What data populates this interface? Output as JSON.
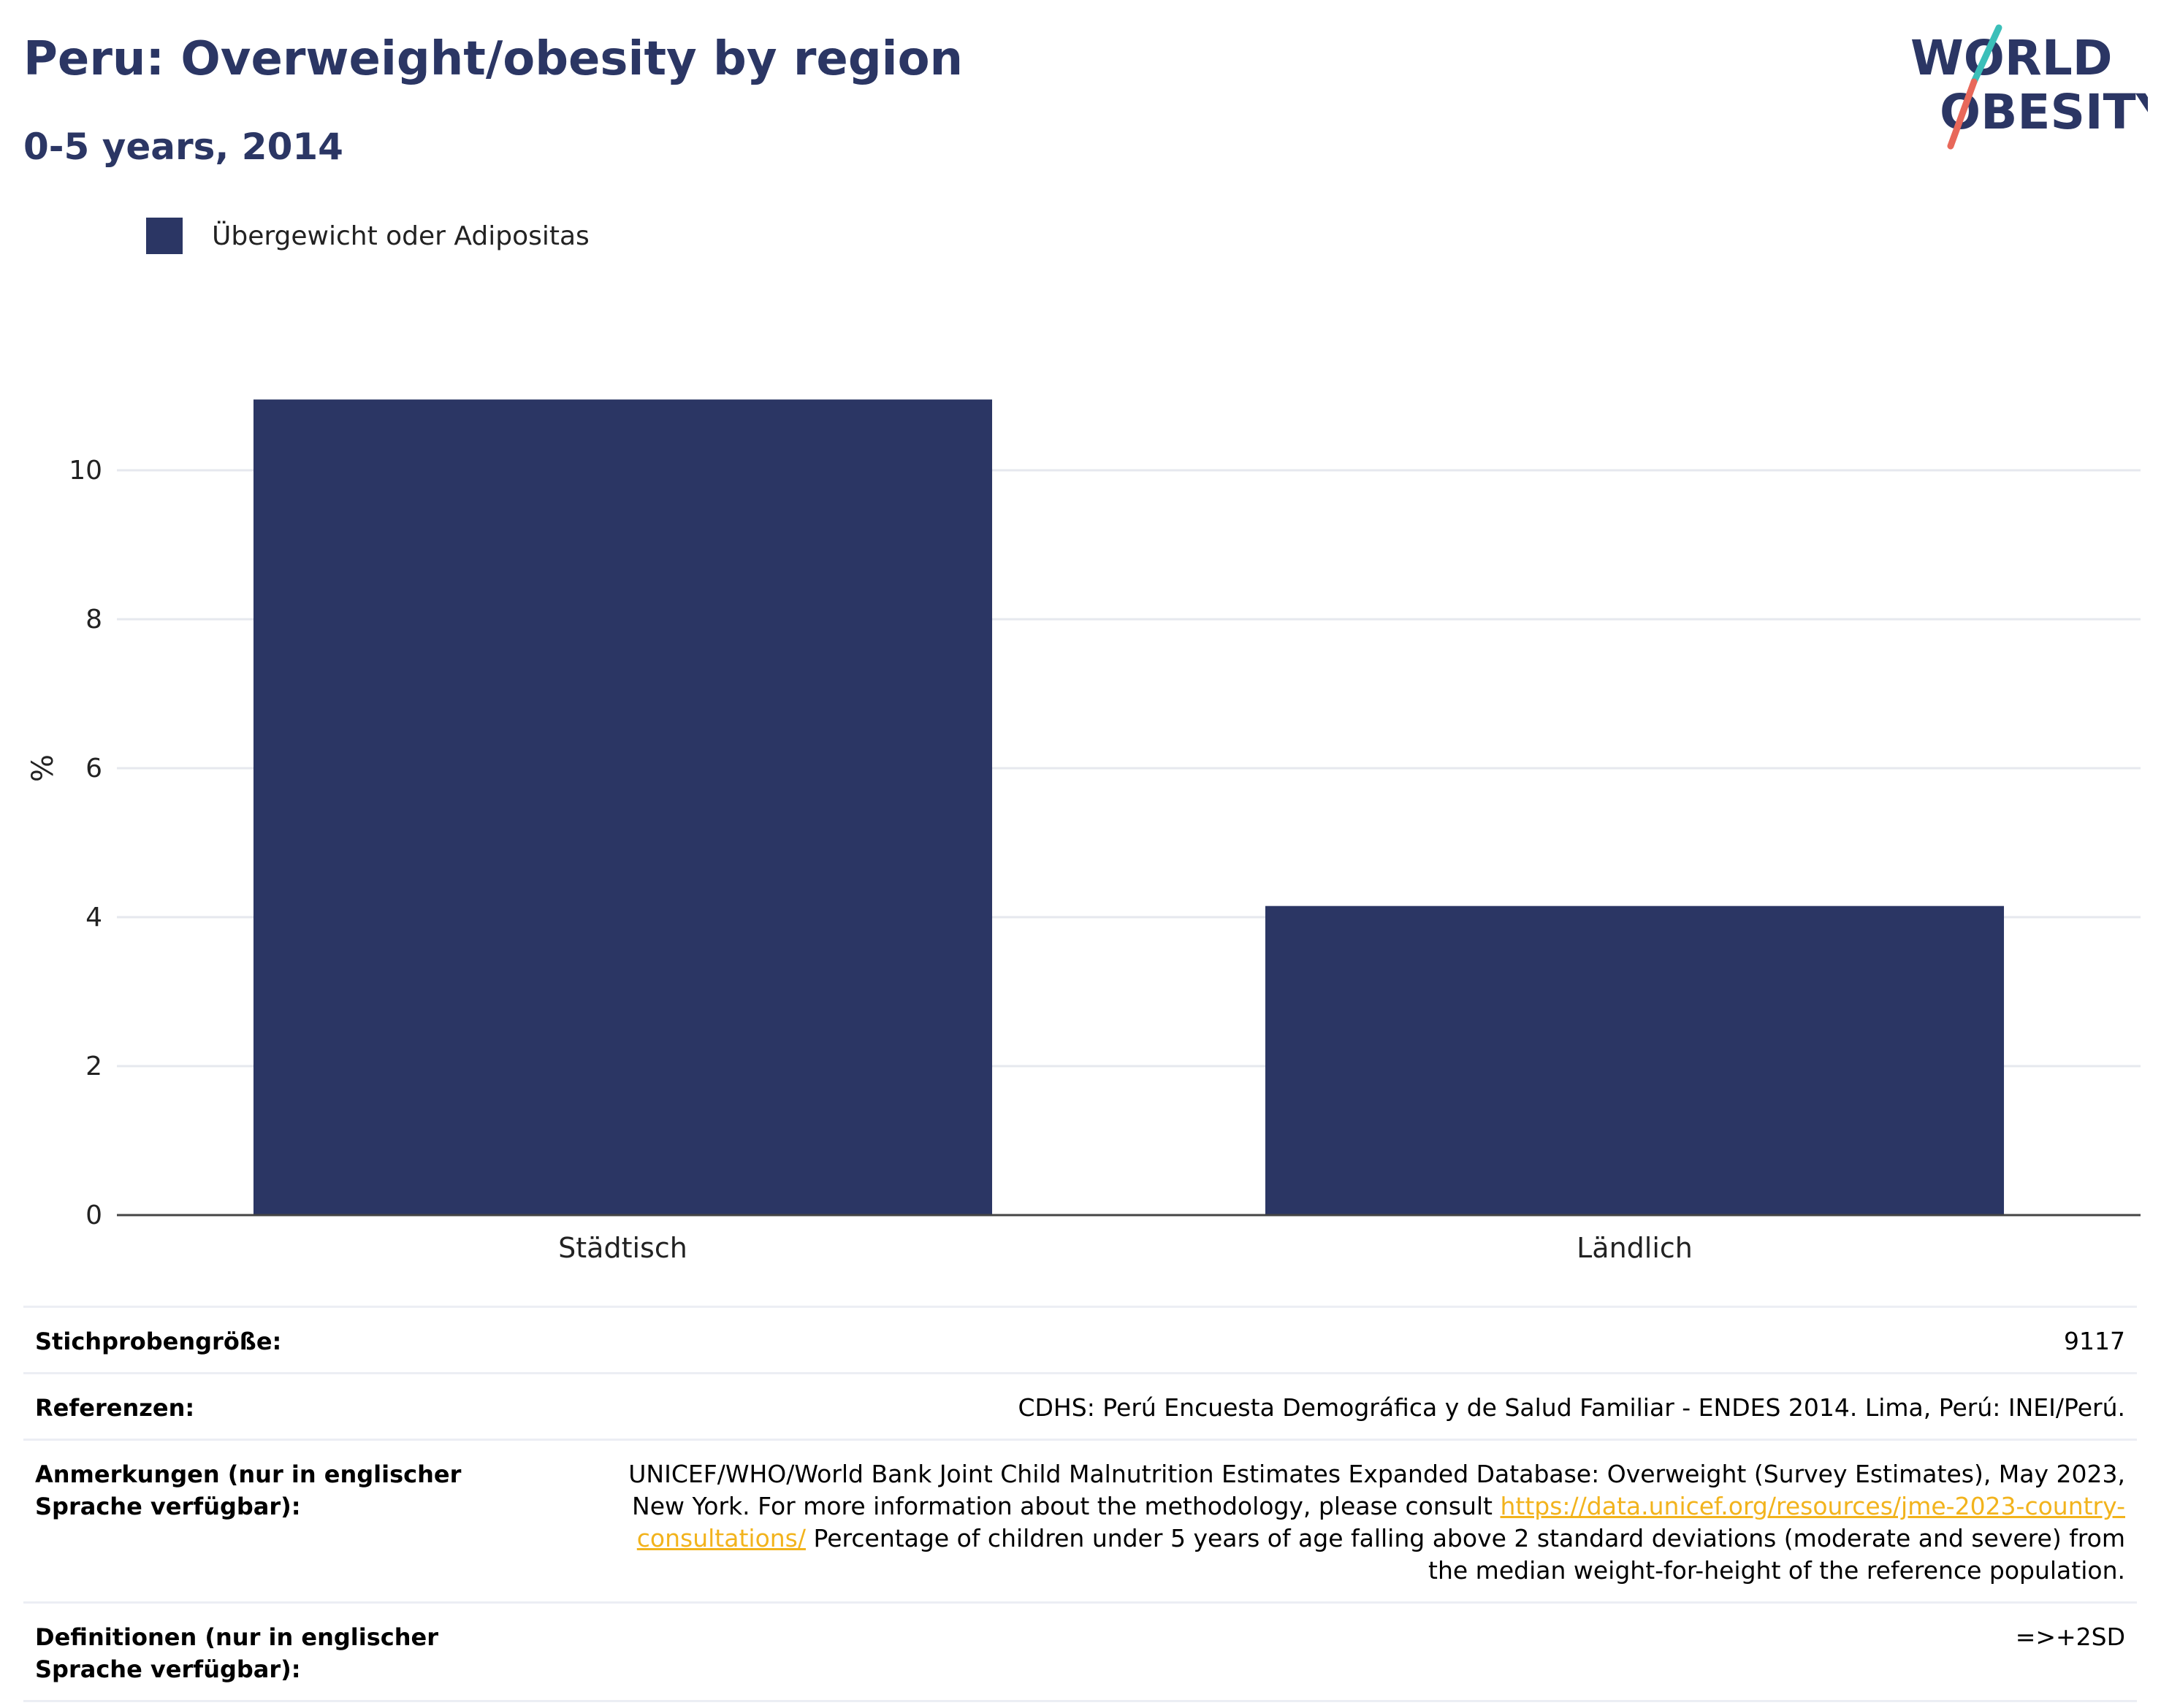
{
  "header": {
    "title": "Peru: Overweight/obesity by region",
    "subtitle": "0-5 years, 2014"
  },
  "logo": {
    "line1": "WORLD",
    "line2": "OBESITY",
    "colors": {
      "text": "#2b3664",
      "slash_top": "#3bbfb9",
      "slash_bottom": "#e8685a"
    }
  },
  "legend": {
    "label": "Übergewicht oder Adipositas",
    "color": "#2b3664"
  },
  "chart_data": {
    "type": "bar",
    "categories": [
      "Städtisch",
      "Ländlich"
    ],
    "series": [
      {
        "name": "Übergewicht oder Adipositas",
        "values": [
          10.95,
          4.15
        ],
        "color": "#2b3664"
      }
    ],
    "ylabel": "%",
    "xlabel": "",
    "ylim": [
      0,
      12
    ],
    "yticks": [
      0,
      2,
      4,
      6,
      8,
      10
    ],
    "grid": true,
    "legend_position": "top-left"
  },
  "info": {
    "sample_label": "Stichprobengröße:",
    "sample_value": "9117",
    "references_label": "Referenzen:",
    "references_value": "CDHS: Perú Encuesta Demográfica y de Salud Familiar - ENDES 2014. Lima, Perú: INEI/Perú.",
    "notes_label": "Anmerkungen (nur in englischer Sprache verfügbar):",
    "notes_text_1": "UNICEF/WHO/World Bank Joint Child Malnutrition Estimates Expanded Database: Overweight (Survey Estimates), May 2023, New York. For more information about the methodology, please consult",
    "notes_link": "https://data.unicef.org/resources/jme-2023-country-consultations/",
    "notes_text_2": "Percentage of children under 5 years of age falling above 2 standard deviations (moderate and severe) from the median weight-for-height of the reference population.",
    "definitions_label": "Definitionen (nur in englischer Sprache verfügbar):",
    "definitions_value": "=>+2SD"
  }
}
